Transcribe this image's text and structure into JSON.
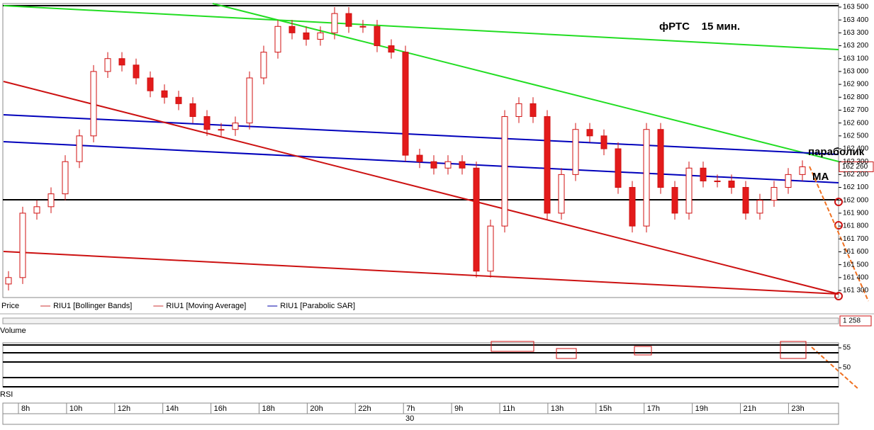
{
  "chart_data": {
    "type": "candlestick",
    "annotations": [
      "фРТС    15 мин.",
      "параболик",
      "МА"
    ],
    "legend": [
      "Price",
      "RIU1 [Bollinger Bands]",
      "RIU1 [Moving Average]",
      "RIU1 [Parabolic SAR]"
    ],
    "up_color": "#ffffff",
    "down_color": "#e31b1b",
    "candle_stroke": "#d01010",
    "open": [
      161350,
      161400,
      161900,
      161950,
      162050,
      162300,
      162500,
      163000,
      163100,
      163050,
      162950,
      162850,
      162800,
      162750,
      162650,
      162550,
      162550,
      162600,
      162950,
      163150,
      163350,
      163300,
      163250,
      163300,
      163450,
      163350,
      163350,
      163200,
      163150,
      162350,
      162300,
      162250,
      162300,
      162250,
      161450,
      161800,
      162650,
      162750,
      162650,
      161900,
      162200,
      162550,
      162500,
      162400,
      162100,
      161800,
      162550,
      162100,
      161900,
      162250,
      162150,
      162150,
      162100,
      161900,
      162000,
      162100,
      162200
    ],
    "high": [
      161450,
      161950,
      162000,
      162100,
      162350,
      162550,
      163050,
      163150,
      163150,
      163100,
      163000,
      162900,
      162850,
      162800,
      162700,
      162600,
      162650,
      163000,
      163200,
      163400,
      163400,
      163350,
      163350,
      163500,
      163500,
      163400,
      163400,
      163250,
      163200,
      162400,
      162350,
      162350,
      162350,
      162300,
      161850,
      162700,
      162800,
      162800,
      162700,
      162250,
      162600,
      162600,
      162550,
      162450,
      162150,
      162600,
      162600,
      162150,
      162300,
      162300,
      162200,
      162200,
      162150,
      162050,
      162150,
      162250,
      162310
    ],
    "low": [
      161300,
      161350,
      161850,
      161900,
      162000,
      162250,
      162450,
      162950,
      163000,
      162900,
      162800,
      162750,
      162700,
      162600,
      162500,
      162500,
      162500,
      162550,
      162900,
      163100,
      163250,
      163200,
      163200,
      163250,
      163300,
      163300,
      163150,
      163100,
      162300,
      162250,
      162200,
      162200,
      162200,
      161400,
      161400,
      161750,
      162600,
      162600,
      161850,
      161850,
      162150,
      162450,
      162350,
      162050,
      161750,
      161750,
      162050,
      161850,
      161850,
      162100,
      162100,
      162050,
      161850,
      161850,
      161950,
      162050,
      162150
    ],
    "close": [
      161400,
      161900,
      161950,
      162050,
      162300,
      162500,
      163000,
      163100,
      163050,
      162950,
      162850,
      162800,
      162750,
      162650,
      162550,
      162550,
      162600,
      162950,
      163150,
      163350,
      163300,
      163250,
      163300,
      163450,
      163350,
      163350,
      163200,
      163150,
      162350,
      162300,
      162250,
      162300,
      162250,
      161450,
      161800,
      162650,
      162750,
      162650,
      161900,
      162200,
      162550,
      162500,
      162400,
      162100,
      161800,
      162550,
      162100,
      161900,
      162250,
      162150,
      162150,
      162100,
      161900,
      162000,
      162100,
      162200,
      162260
    ],
    "ylim": [
      161245,
      163527.5
    ],
    "yticks": [
      {
        "value": 161300,
        "label": "161 300"
      },
      {
        "value": 161400,
        "label": "161 400"
      },
      {
        "value": 161500,
        "label": "161 500"
      },
      {
        "value": 161600,
        "label": "161 600"
      },
      {
        "value": 161700,
        "label": "161 700"
      },
      {
        "value": 161800,
        "label": "161 800"
      },
      {
        "value": 161900,
        "label": "161 900"
      },
      {
        "value": 162000,
        "label": "162 000"
      },
      {
        "value": 162100,
        "label": "162 100"
      },
      {
        "value": 162200,
        "label": "162 200"
      },
      {
        "value": 162300,
        "label": "162 300"
      },
      {
        "value": 162400,
        "label": "162 400"
      },
      {
        "value": 162500,
        "label": "162 500"
      },
      {
        "value": 162600,
        "label": "162 600"
      },
      {
        "value": 162700,
        "label": "162 700"
      },
      {
        "value": 162800,
        "label": "162 800"
      },
      {
        "value": 162900,
        "label": "162 900"
      },
      {
        "value": 163000,
        "label": "163 000"
      },
      {
        "value": 163100,
        "label": "163 100"
      },
      {
        "value": 163200,
        "label": "163 200"
      },
      {
        "value": 163300,
        "label": "163 300"
      },
      {
        "value": 163400,
        "label": "163 400"
      },
      {
        "value": 163500,
        "label": "163 500"
      }
    ],
    "last_price": {
      "value": 162260,
      "label": "162 260"
    },
    "scroll_value": "1 258",
    "volume_label": "Volume",
    "rsi": {
      "label": "RSI",
      "ylim": [
        45.2,
        56.25
      ],
      "yticks": [
        55,
        50
      ]
    },
    "time_labels": [
      "8h",
      "10h",
      "12h",
      "14h",
      "16h",
      "18h",
      "20h",
      "22h",
      "7h",
      "9h",
      "11h",
      "13h",
      "15h",
      "17h",
      "19h",
      "21h",
      "23h"
    ],
    "date_label": "30"
  }
}
